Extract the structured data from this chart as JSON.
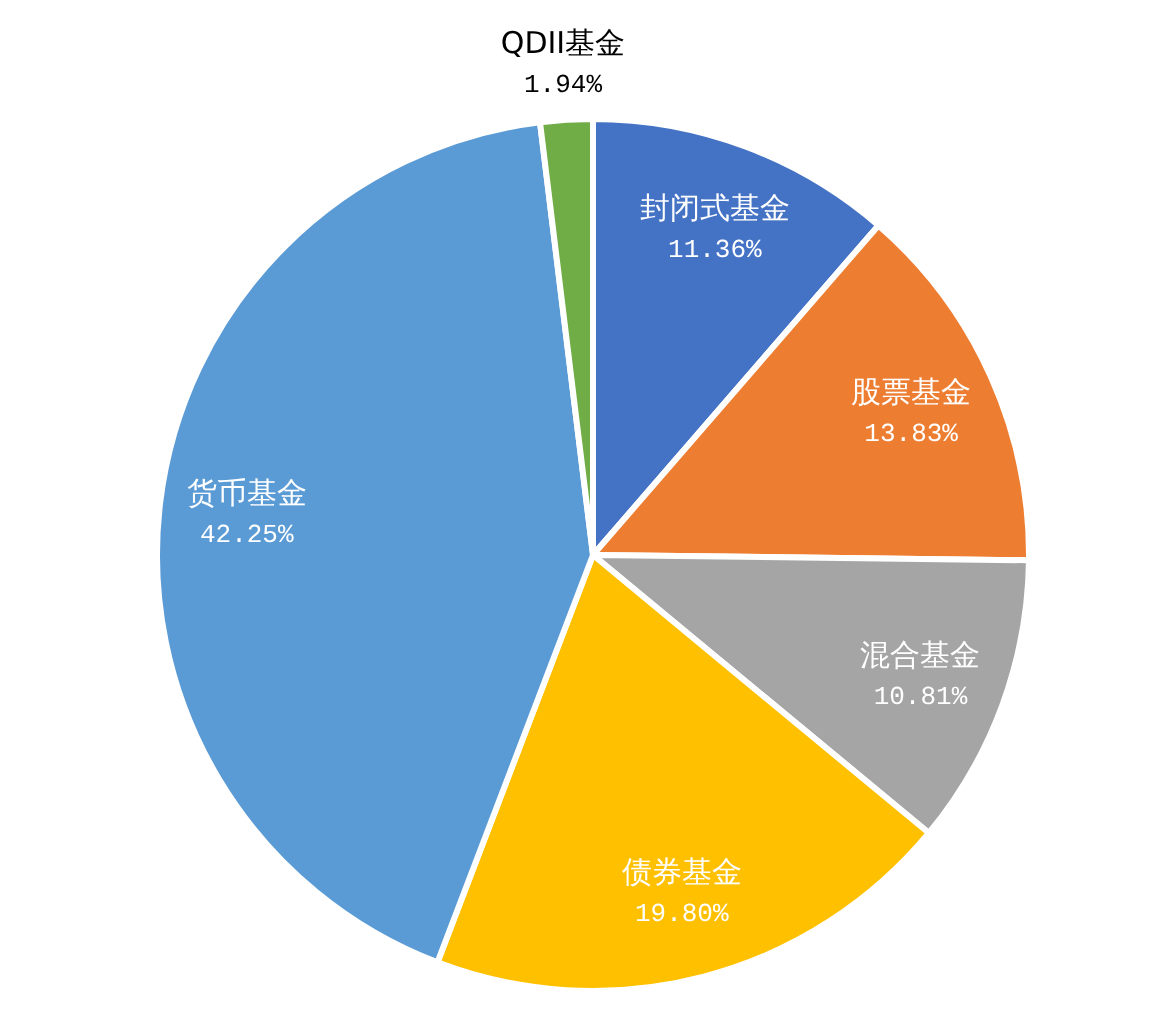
{
  "chart_data": {
    "type": "pie",
    "categories": [
      "封闭式基金",
      "股票基金",
      "混合基金",
      "债券基金",
      "货币基金",
      "QDII基金"
    ],
    "values": [
      11.36,
      13.83,
      10.81,
      19.8,
      42.25,
      1.94
    ],
    "colors": [
      "#4472c4",
      "#ed7d31",
      "#a5a5a5",
      "#ffc000",
      "#5b9bd5",
      "#70ad47"
    ],
    "value_labels": [
      "11.36%",
      "13.83%",
      "10.81%",
      "19.80%",
      "42.25%",
      "1.94%"
    ]
  }
}
